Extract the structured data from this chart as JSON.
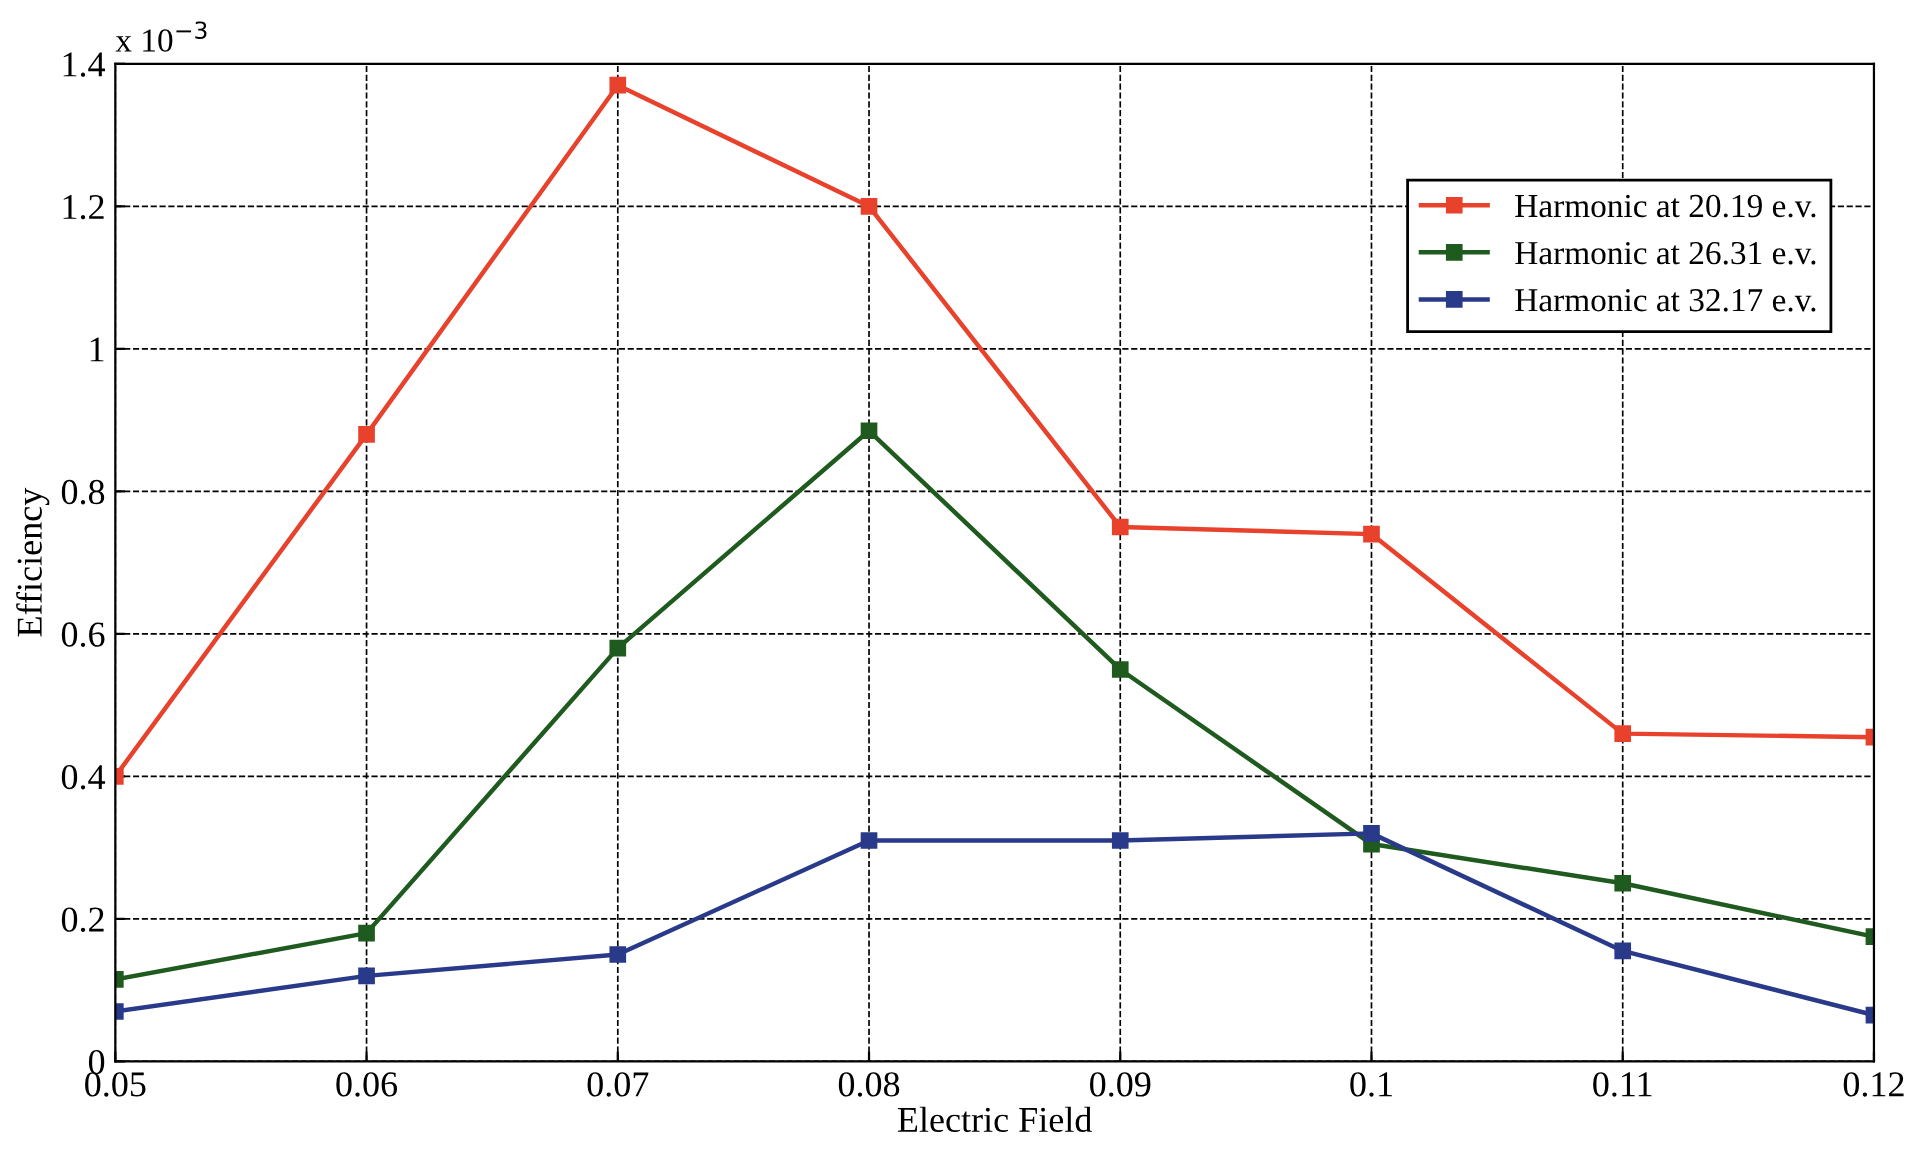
{
  "chart_data": {
    "type": "line",
    "xlabel": "Electric Field",
    "ylabel": "Efficiency",
    "annotations": [
      "x 10$^{−3}$"
    ],
    "x": [
      0.05,
      0.06,
      0.07,
      0.08,
      0.09,
      0.1,
      0.11,
      0.12
    ],
    "series": [
      {
        "name": "Harmonic at 20.19 e.v.",
        "color": "#e8412c",
        "values": [
          0.4,
          0.88,
          1.37,
          1.2,
          0.75,
          0.74,
          0.46,
          0.455
        ]
      },
      {
        "name": "Harmonic at 26.31 e.v.",
        "color": "#1f5a1f",
        "values": [
          0.115,
          0.18,
          0.58,
          0.885,
          0.55,
          0.305,
          0.25,
          0.175
        ]
      },
      {
        "name": "Harmonic at 32.17 e.v.",
        "color": "#2a3a8a",
        "values": [
          0.07,
          0.12,
          0.15,
          0.31,
          0.31,
          0.32,
          0.155,
          0.065
        ]
      }
    ],
    "xlim": [
      0.05,
      0.12
    ],
    "ylim": [
      0,
      1.4
    ],
    "xticks": [
      0.05,
      0.06,
      0.07,
      0.08,
      0.09,
      0.1,
      0.11,
      0.12
    ],
    "yticks": [
      0,
      0.2,
      0.4,
      0.6,
      0.8,
      1,
      1.2,
      1.4
    ],
    "grid": true,
    "legend": "top right",
    "marker": "square",
    "line_style": "solid"
  }
}
